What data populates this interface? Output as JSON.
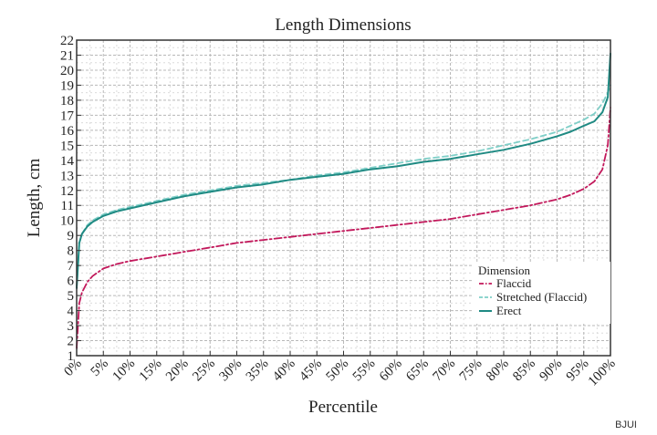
{
  "chart_data": {
    "type": "line",
    "title": "Length Dimensions",
    "xlabel": "Percentile",
    "ylabel": "Length, cm",
    "xlim": [
      0,
      100
    ],
    "ylim": [
      1,
      22
    ],
    "x_ticks": [
      0,
      5,
      10,
      15,
      20,
      25,
      30,
      35,
      40,
      45,
      50,
      55,
      60,
      65,
      70,
      75,
      80,
      85,
      90,
      95,
      100
    ],
    "x_tick_labels": [
      "0%",
      "5%",
      "10%",
      "15%",
      "20%",
      "25%",
      "30%",
      "35%",
      "40%",
      "45%",
      "50%",
      "55%",
      "60%",
      "65%",
      "70%",
      "75%",
      "80%",
      "85%",
      "90%",
      "95%",
      "100%"
    ],
    "y_ticks": [
      1,
      2,
      3,
      4,
      5,
      6,
      7,
      8,
      9,
      10,
      11,
      12,
      13,
      14,
      15,
      16,
      17,
      18,
      19,
      20,
      21,
      22
    ],
    "grid": true,
    "legend": {
      "title": "Dimension",
      "placement": "lower-right"
    },
    "x": [
      0,
      0.5,
      1,
      2,
      3,
      5,
      7.5,
      10,
      15,
      20,
      25,
      30,
      35,
      40,
      45,
      50,
      55,
      60,
      65,
      70,
      75,
      80,
      85,
      90,
      92.5,
      95,
      97,
      98.5,
      99.5,
      100
    ],
    "series": [
      {
        "name": "Flaccid",
        "style": "dash-dot",
        "color": "#c2185b",
        "values": [
          1.5,
          4.5,
          5.2,
          5.9,
          6.3,
          6.8,
          7.1,
          7.3,
          7.6,
          7.9,
          8.2,
          8.5,
          8.7,
          8.9,
          9.1,
          9.3,
          9.5,
          9.7,
          9.9,
          10.1,
          10.4,
          10.7,
          11.0,
          11.4,
          11.7,
          12.1,
          12.6,
          13.4,
          15.0,
          17.5
        ]
      },
      {
        "name": "Stretched (Flaccid)",
        "style": "dashed",
        "color": "#7fcfc8",
        "values": [
          5.5,
          8.5,
          9.1,
          9.7,
          10.0,
          10.4,
          10.7,
          10.9,
          11.3,
          11.7,
          12.0,
          12.3,
          12.5,
          12.7,
          13.0,
          13.2,
          13.5,
          13.8,
          14.1,
          14.3,
          14.6,
          15.0,
          15.4,
          15.9,
          16.3,
          16.7,
          17.1,
          17.8,
          18.5,
          19.0
        ]
      },
      {
        "name": "Erect",
        "style": "solid",
        "color": "#1f8a83",
        "values": [
          5.5,
          8.5,
          9.1,
          9.6,
          9.9,
          10.3,
          10.6,
          10.8,
          11.2,
          11.6,
          11.9,
          12.2,
          12.4,
          12.7,
          12.9,
          13.1,
          13.4,
          13.6,
          13.9,
          14.1,
          14.4,
          14.7,
          15.1,
          15.6,
          15.9,
          16.3,
          16.6,
          17.2,
          18.2,
          21.1
        ]
      }
    ]
  },
  "credit": "BJUI"
}
